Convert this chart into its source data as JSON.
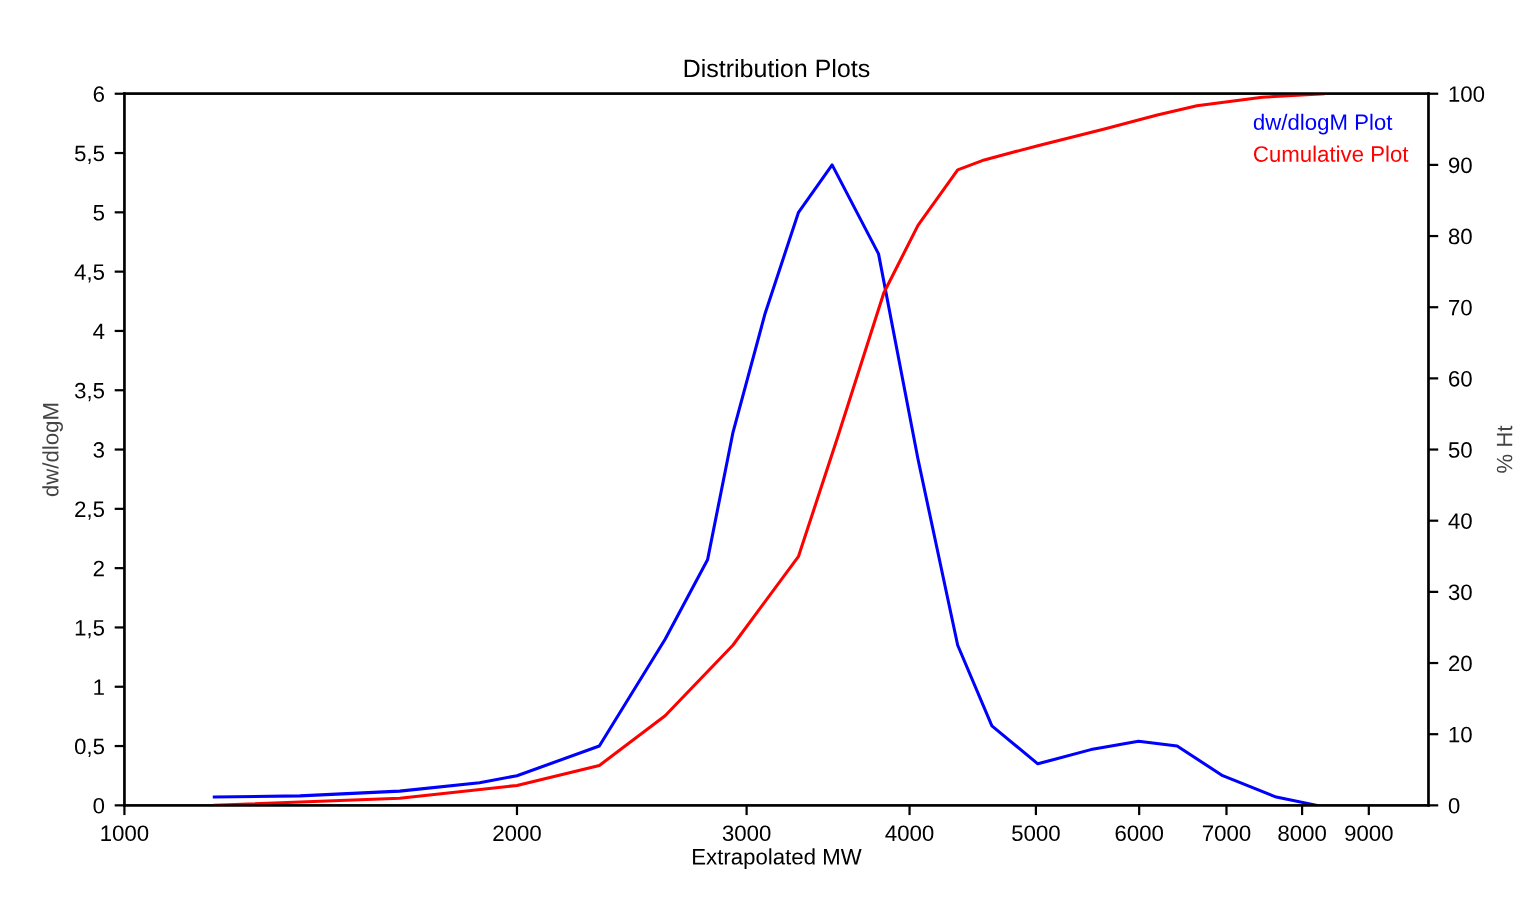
{
  "chart_data": {
    "type": "line",
    "title": "Distribution Plots",
    "xlabel": "Extrapolated MW",
    "ylabel": "dw/dlogM",
    "y2label": "% Ht",
    "log": "x",
    "grid": false,
    "legend": "top right",
    "marker": "none",
    "line_style": "solid",
    "xlim": [
      1000,
      10000
    ],
    "xticks": [
      1000,
      2000,
      3000,
      4000,
      5000,
      6000,
      7000,
      8000,
      9000
    ],
    "ylim": [
      0,
      6
    ],
    "yticks": [
      0,
      {
        "value": 0.5,
        "label": "0,5"
      },
      1,
      {
        "value": 1.5,
        "label": "1,5"
      },
      2,
      {
        "value": 2.5,
        "label": "2,5"
      },
      3,
      {
        "value": 3.5,
        "label": "3,5"
      },
      4,
      {
        "value": 4.5,
        "label": "4,5"
      },
      5,
      {
        "value": 5.5,
        "label": "5,5"
      },
      6
    ],
    "y2lim": [
      0,
      100
    ],
    "y2ticks": [
      0,
      10,
      20,
      30,
      40,
      50,
      60,
      70,
      80,
      90,
      100
    ],
    "series": [
      {
        "name": "dw/dlogM Plot",
        "color": "#0000ff",
        "x": [
          1172,
          1363,
          1626,
          1872,
          2000,
          2313,
          2598,
          2800,
          2928,
          3100,
          3288,
          3489,
          3787,
          4060,
          4355,
          4626,
          5017,
          5510,
          5994,
          6416,
          6953,
          7643,
          8212
        ],
        "values": [
          0.07,
          0.08,
          0.12,
          0.19,
          0.25,
          0.5,
          1.4,
          2.07,
          3.14,
          4.15,
          5.0,
          5.4,
          4.65,
          2.92,
          1.35,
          0.67,
          0.35,
          0.47,
          0.54,
          0.5,
          0.25,
          0.07,
          0
        ]
      },
      {
        "name": "Cumulative Plot",
        "color": "#ff0000",
        "axis": "y2",
        "x": [
          1172,
          1626,
          2000,
          2313,
          2598,
          2928,
          3288,
          3527,
          3822,
          4060,
          4355,
          4564,
          5017,
          5633,
          6195,
          6644,
          7456,
          8305
        ],
        "values": [
          0,
          1,
          2.8,
          5.6,
          12.6,
          22.5,
          35,
          52,
          72,
          81.5,
          89.3,
          90.7,
          92.7,
          95,
          97,
          98.3,
          99.5,
          100
        ]
      }
    ]
  }
}
